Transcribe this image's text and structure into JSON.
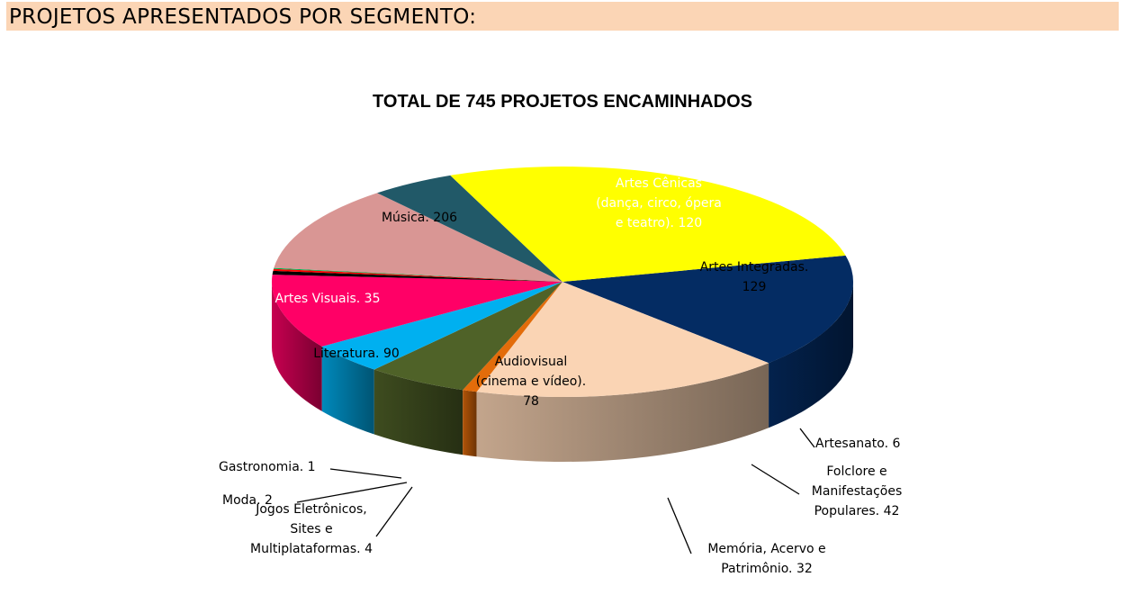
{
  "page": {
    "header": "PROJETOS APRESENTADOS POR SEGMENTO:"
  },
  "chart_data": {
    "type": "pie",
    "title": "TOTAL DE 745 PROJETOS ENCAMINHADOS",
    "categories": [
      "Artes Cênicas (dança, circo, ópera e teatro)",
      "Artes Integradas",
      "Artesanato",
      "Folclore e Manifestações Populares",
      "Memória, Acervo e Patrimônio",
      "Audiovisual (cinema e vídeo)",
      "Jogos Eletrônicos, Sites e Multiplataformas",
      "Moda",
      "Gastronomia",
      "Literatura",
      "Artes Visuais",
      "Música"
    ],
    "values": [
      120,
      129,
      6,
      42,
      32,
      78,
      4,
      2,
      1,
      90,
      35,
      206
    ],
    "colors": [
      "#042c63",
      "#fad4b4",
      "#e36c0a",
      "#4f6228",
      "#00b0f0",
      "#ff0066",
      "#000000",
      "#ff0000",
      "#00b050",
      "#d99694",
      "#215968",
      "#ffff00"
    ],
    "labels": [
      [
        "Artes Cênicas",
        "(dança, circo, ópera",
        "e teatro). 120"
      ],
      [
        "Artes Integradas.",
        "129"
      ],
      [
        "Artesanato. 6"
      ],
      [
        "Folclore e",
        "Manifestações",
        "Populares. 42"
      ],
      [
        "Memória, Acervo  e",
        "Patrimônio. 32"
      ],
      [
        "Audiovisual",
        "(cinema e vídeo).",
        "78"
      ],
      [
        "Jogos Eletrônicos,",
        "Sites e",
        "Multiplataformas. 4"
      ],
      [
        "Moda. 2"
      ],
      [
        "Gastronomia. 1"
      ],
      [
        "Literatura. 90"
      ],
      [
        "Artes Visuais. 35"
      ],
      [
        "Música. 206"
      ]
    ],
    "label_colors": [
      "#ffffff",
      "#000000",
      "#000000",
      "#000000",
      "#000000",
      "#000000",
      "#000000",
      "#000000",
      "#000000",
      "#000000",
      "#ffffff",
      "#000000"
    ],
    "style": "3d-pie"
  }
}
